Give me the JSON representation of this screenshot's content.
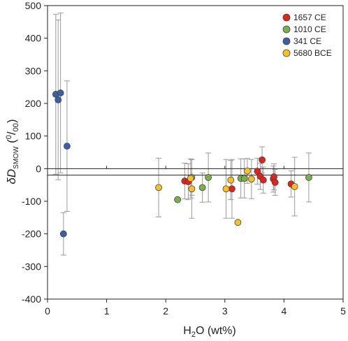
{
  "chart_data": {
    "type": "scatter",
    "xlabel": {
      "pre": "H",
      "sub": "2",
      "post": "O (wt%)"
    },
    "ylabel": {
      "main": "δD",
      "sub": "SMOW",
      "mid": " (",
      "sup": "0",
      "slash": "/",
      "sub2": "00",
      "end": ")"
    },
    "xlim": [
      0,
      5
    ],
    "ylim": [
      -400,
      500
    ],
    "x_ticks": [
      "0",
      "1",
      "2",
      "3",
      "4",
      "5"
    ],
    "y_ticks": [
      "500",
      "400",
      "300",
      "200",
      "100",
      "0",
      "-100",
      "-200",
      "-300",
      "-400"
    ],
    "grid": false,
    "legend_position": "top-right",
    "reference_lines_y": [
      0,
      -20
    ],
    "series": [
      {
        "name": "1657 CE",
        "color": "#e8201a",
        "points": [
          {
            "x": 2.32,
            "y": -38,
            "err": 55
          },
          {
            "x": 2.38,
            "y": -40,
            "err": 55
          },
          {
            "x": 3.12,
            "y": -62,
            "err": 90
          },
          {
            "x": 3.55,
            "y": -8,
            "err": 40
          },
          {
            "x": 3.6,
            "y": -24,
            "err": 40
          },
          {
            "x": 3.63,
            "y": 27,
            "err": 40
          },
          {
            "x": 3.65,
            "y": -35,
            "err": 40
          },
          {
            "x": 3.82,
            "y": -32,
            "err": 40
          },
          {
            "x": 3.83,
            "y": -25,
            "err": 40
          },
          {
            "x": 3.85,
            "y": -42,
            "err": 40
          },
          {
            "x": 4.12,
            "y": -47,
            "err": 40
          }
        ]
      },
      {
        "name": "1010 CE",
        "color": "#7ab04a",
        "points": [
          {
            "x": 2.2,
            "y": -95,
            "err": 0
          },
          {
            "x": 2.44,
            "y": -27,
            "err": 55
          },
          {
            "x": 2.62,
            "y": -58,
            "err": 45
          },
          {
            "x": 2.72,
            "y": -27,
            "err": 75
          },
          {
            "x": 3.27,
            "y": -30,
            "err": 60
          },
          {
            "x": 3.33,
            "y": -30,
            "err": 60
          },
          {
            "x": 4.42,
            "y": -27,
            "err": 75
          }
        ]
      },
      {
        "name": "341 CE",
        "color": "#3b5ea8",
        "points": [
          {
            "x": 0.14,
            "y": 228,
            "err": 245
          },
          {
            "x": 0.18,
            "y": 211,
            "err": 245
          },
          {
            "x": 0.22,
            "y": 232,
            "err": 245
          },
          {
            "x": 0.27,
            "y": -200,
            "err": 65
          },
          {
            "x": 0.33,
            "y": 69,
            "err": 200
          }
        ]
      },
      {
        "name": "5680 BCE",
        "color": "#f7c21d",
        "points": [
          {
            "x": 1.88,
            "y": -58,
            "err": 90
          },
          {
            "x": 2.42,
            "y": -30,
            "err": 60
          },
          {
            "x": 2.44,
            "y": -62,
            "err": 90
          },
          {
            "x": 3.02,
            "y": -62,
            "err": 90
          },
          {
            "x": 3.1,
            "y": -35,
            "err": 60
          },
          {
            "x": 3.22,
            "y": -165,
            "err": 0
          },
          {
            "x": 3.38,
            "y": -7,
            "err": 38
          },
          {
            "x": 3.45,
            "y": -32,
            "err": 60
          },
          {
            "x": 4.18,
            "y": -55,
            "err": 90
          }
        ]
      }
    ]
  }
}
